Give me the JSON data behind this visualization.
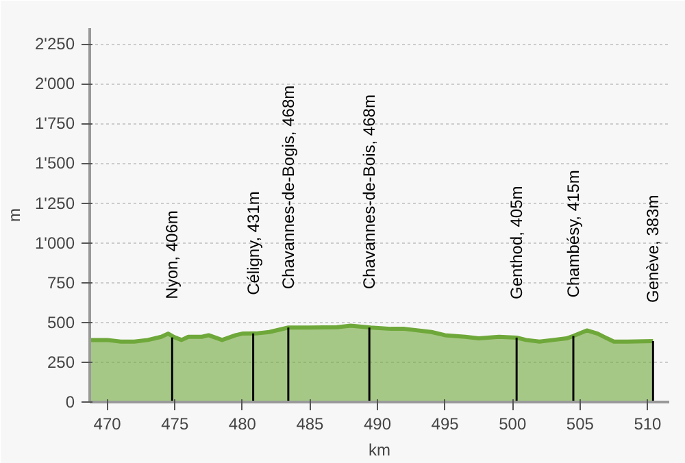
{
  "chart_data": {
    "type": "area",
    "xlabel": "km",
    "ylabel": "m",
    "series": [
      {
        "color": "#6fa83a",
        "x": [
          468.7,
          470,
          471,
          472,
          473,
          474,
          474.5,
          475,
          475.5,
          476,
          477,
          477.5,
          478.5,
          479.5,
          480,
          481,
          482,
          483.4,
          485,
          487,
          488,
          489.5,
          491,
          492,
          494,
          495,
          496.5,
          497.5,
          499,
          500.3,
          501,
          502,
          503,
          504,
          504.5,
          505.5,
          506.3,
          507,
          507.5,
          508.5,
          510.4
        ],
        "values": [
          390,
          390,
          380,
          380,
          390,
          410,
          430,
          406,
          390,
          410,
          410,
          420,
          390,
          420,
          430,
          431,
          440,
          468,
          468,
          470,
          480,
          468,
          460,
          460,
          440,
          420,
          410,
          400,
          410,
          405,
          390,
          380,
          390,
          400,
          415,
          450,
          430,
          400,
          380,
          380,
          383
        ]
      },
      {
        "type": "bar",
        "color": "#000000",
        "x": [
          474.8,
          480.8,
          483.4,
          489.4,
          500.3,
          504.5,
          510.4
        ],
        "values": [
          406,
          431,
          468,
          468,
          405,
          415,
          383
        ]
      }
    ],
    "xlim": [
      468.7,
      511.6
    ],
    "ylim": [
      0,
      2350
    ],
    "xticks": [
      470,
      475,
      480,
      485,
      490,
      495,
      500,
      505,
      510
    ],
    "yticks": [
      0,
      250,
      500,
      750,
      {
        "value": 1000,
        "label": "1'000"
      },
      {
        "value": 1250,
        "label": "1'250"
      },
      {
        "value": 1500,
        "label": "1'500"
      },
      {
        "value": 1750,
        "label": "1'750"
      },
      {
        "value": 2000,
        "label": "2'000"
      },
      {
        "value": 2250,
        "label": "2'250"
      }
    ],
    "grid": "y",
    "annotations": [
      {
        "text": "Nyon, 406m",
        "x": 474.8,
        "y": 406
      },
      {
        "text": "Céligny, 431m",
        "x": 480.8,
        "y": 431
      },
      {
        "text": "Chavannes-de-Bogis, 468m",
        "x": 483.4,
        "y": 468
      },
      {
        "text": "Chavannes-de-Bois, 468m",
        "x": 489.4,
        "y": 468
      },
      {
        "text": "Genthod, 405m",
        "x": 500.3,
        "y": 405
      },
      {
        "text": "Chambésy, 415m",
        "x": 504.5,
        "y": 415
      },
      {
        "text": "Genève, 383m",
        "x": 510.4,
        "y": 383
      }
    ]
  }
}
